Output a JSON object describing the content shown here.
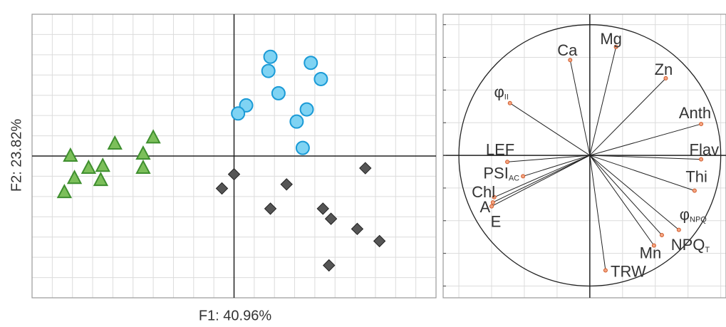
{
  "chart_data": [
    {
      "type": "scatter",
      "xlabel": "F1: 40.96%",
      "ylabel": "F2: 23.82%",
      "xlim": [
        -10,
        10
      ],
      "ylim": [
        -7,
        7
      ],
      "xticks": [
        -10,
        -9,
        -8,
        -7,
        -6,
        -5,
        -4,
        -3,
        -2,
        -1,
        0,
        1,
        2,
        3,
        4,
        5,
        6,
        7,
        8,
        9,
        10
      ],
      "yticks": [
        -7,
        -6,
        -5,
        -4,
        -3,
        -2,
        -1,
        0,
        1,
        2,
        3,
        4,
        5,
        6,
        7
      ],
      "grid": true,
      "series": [
        {
          "marker": "triangle",
          "color": "#7cbf5a",
          "edge": "#3f8f2f",
          "x": [
            -8.1,
            -7.9,
            -7.2,
            -6.5,
            -6.6,
            -8.4,
            -5.9,
            -4.5,
            -4.5,
            -4.0
          ],
          "y": [
            0.0,
            -1.1,
            -0.6,
            -0.5,
            -1.2,
            -1.8,
            0.6,
            0.1,
            -0.6,
            0.9
          ]
        },
        {
          "marker": "circle",
          "color": "#7fd3f3",
          "edge": "#1a9ad6",
          "x": [
            1.8,
            1.7,
            3.8,
            4.3,
            2.2,
            0.6,
            0.2,
            3.6,
            3.1,
            3.4
          ],
          "y": [
            4.9,
            4.2,
            4.6,
            3.8,
            3.1,
            2.5,
            2.1,
            2.3,
            1.7,
            0.4
          ]
        },
        {
          "marker": "diamond",
          "color": "#555555",
          "edge": "#222222",
          "x": [
            0.0,
            -0.6,
            2.6,
            1.8,
            4.4,
            4.8,
            6.5,
            6.1,
            7.2,
            4.7
          ],
          "y": [
            -0.9,
            -1.6,
            -1.4,
            -2.6,
            -2.6,
            -3.1,
            -0.6,
            -3.6,
            -4.2,
            -5.4
          ]
        }
      ]
    },
    {
      "type": "loadings",
      "xlim": [
        -1.12,
        1.04
      ],
      "ylim": [
        -1.09,
        1.08
      ],
      "xticks": [
        -1,
        -0.75,
        -0.5,
        -0.25,
        0,
        0.25,
        0.5,
        0.75,
        1
      ],
      "yticks": [
        -1,
        -0.75,
        -0.5,
        -0.25,
        0,
        0.25,
        0.5,
        0.75,
        1
      ],
      "grid": true,
      "color": "#f4a582",
      "edge": "#d05a2a",
      "variables": [
        {
          "label": "Ca",
          "x": -0.15,
          "y": 0.73
        },
        {
          "label": "Mg",
          "x": 0.2,
          "y": 0.83
        },
        {
          "label": "Zn",
          "x": 0.58,
          "y": 0.59
        },
        {
          "label": "Anth",
          "x": 0.85,
          "y": 0.24
        },
        {
          "label": "Flav",
          "x": 0.85,
          "y": -0.03
        },
        {
          "label": "Thi",
          "x": 0.8,
          "y": -0.27
        },
        {
          "label": "φ",
          "sub": "NPQ",
          "x": 0.68,
          "y": -0.57
        },
        {
          "label": "NPQ",
          "sub": "T",
          "x": 0.55,
          "y": -0.61
        },
        {
          "label": "Mn",
          "x": 0.49,
          "y": -0.69
        },
        {
          "label": "TRW",
          "x": 0.12,
          "y": -0.88
        },
        {
          "label": "φ",
          "sub": "II",
          "x": -0.61,
          "y": 0.4
        },
        {
          "label": "LEF",
          "x": -0.63,
          "y": -0.05
        },
        {
          "label": "PSI",
          "sub": "AC",
          "x": -0.51,
          "y": -0.16
        },
        {
          "label": "Chl",
          "x": -0.73,
          "y": -0.32
        },
        {
          "label": "A",
          "x": -0.74,
          "y": -0.36
        },
        {
          "label": "E",
          "x": -0.75,
          "y": -0.39
        }
      ]
    }
  ]
}
